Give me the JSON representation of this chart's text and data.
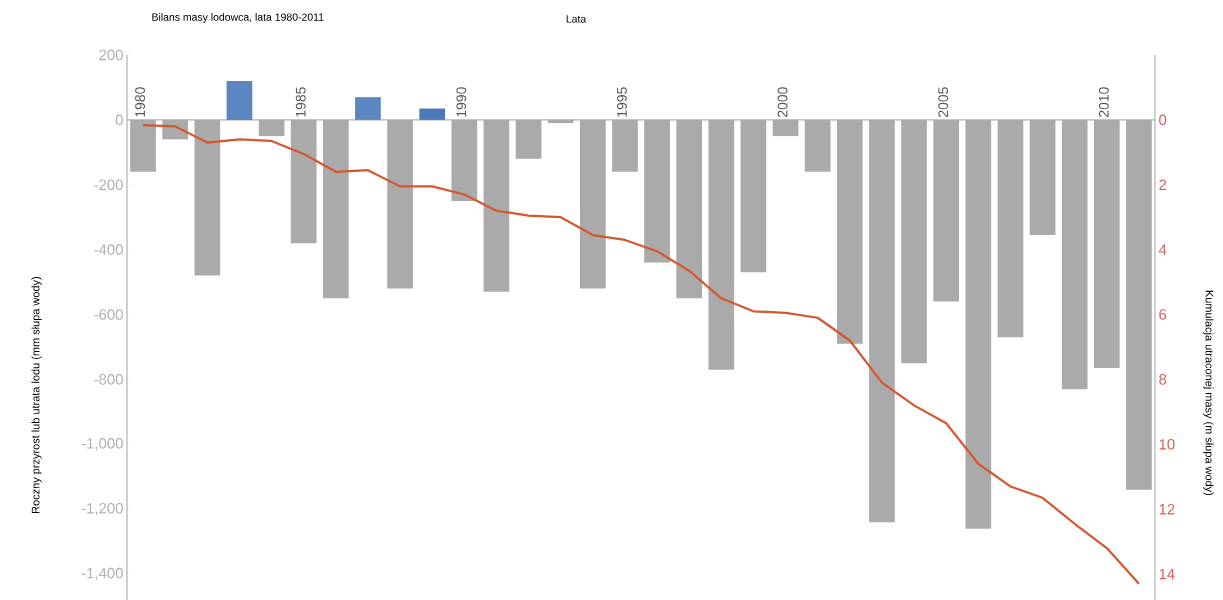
{
  "chart_data": {
    "type": "bar",
    "title": "Bilans masy lodowca, lata 1980-2011",
    "xlabel": "Lata",
    "ylabel": "Roczny przyrost lub utrata lodu (mm słupa wody)",
    "y2label": "Kumulacja utraconej masy (m słupa wody)",
    "categories": [
      "1980",
      null,
      null,
      null,
      null,
      "1985",
      null,
      null,
      null,
      null,
      "1990",
      null,
      null,
      null,
      null,
      "1995",
      null,
      null,
      null,
      null,
      "2000",
      null,
      null,
      null,
      null,
      "2005",
      null,
      null,
      null,
      null,
      "2010",
      null
    ],
    "ylim": [
      -1480,
      200
    ],
    "yticks": [
      200,
      0,
      -200,
      -400,
      -600,
      -800,
      {
        "value": -1000,
        "label": "-1,000"
      },
      {
        "value": -1200,
        "label": "-1,200"
      },
      {
        "value": -1400,
        "label": "-1,400"
      }
    ],
    "y2lim": [
      14.8,
      -2
    ],
    "y2ticks": [
      0,
      2,
      4,
      6,
      8,
      10,
      12,
      14
    ],
    "series": [
      {
        "values": [
          -160,
          -60,
          -480,
          120,
          -50,
          -380,
          -550,
          70,
          -520,
          35,
          -250,
          -530,
          -120,
          -10,
          -520,
          -160,
          -440,
          -550,
          -770,
          -470,
          -50,
          -160,
          -690,
          -1240,
          -750,
          -560,
          -1260,
          -670,
          -355,
          -830,
          -765,
          -1140
        ],
        "colors": [
          "#aaaaaa",
          "#aaaaaa",
          "#aaaaaa",
          "#5b86c2",
          "#aaaaaa",
          "#aaaaaa",
          "#aaaaaa",
          "#5b86c2",
          "#aaaaaa",
          "#4a78b8",
          "#aaaaaa",
          "#aaaaaa",
          "#aaaaaa",
          "#aaaaaa",
          "#aaaaaa",
          "#aaaaaa",
          "#aaaaaa",
          "#aaaaaa",
          "#aaaaaa",
          "#aaaaaa",
          "#aaaaaa",
          "#aaaaaa",
          "#aaaaaa",
          "#aaaaaa",
          "#aaaaaa",
          "#aaaaaa",
          "#aaaaaa",
          "#aaaaaa",
          "#aaaaaa",
          "#aaaaaa",
          "#aaaaaa",
          "#aaaaaa"
        ]
      },
      {
        "type": "line",
        "axis": "y2",
        "color": "#d4572f",
        "values": [
          0.16,
          0.2,
          0.7,
          0.6,
          0.65,
          1.05,
          1.6,
          1.55,
          2.05,
          2.05,
          2.3,
          2.8,
          2.95,
          3.0,
          3.55,
          3.7,
          4.05,
          4.65,
          5.5,
          5.9,
          5.95,
          6.1,
          6.8,
          8.1,
          8.8,
          9.35,
          10.6,
          11.3,
          11.65,
          12.45,
          13.2,
          14.3
        ]
      }
    ]
  }
}
